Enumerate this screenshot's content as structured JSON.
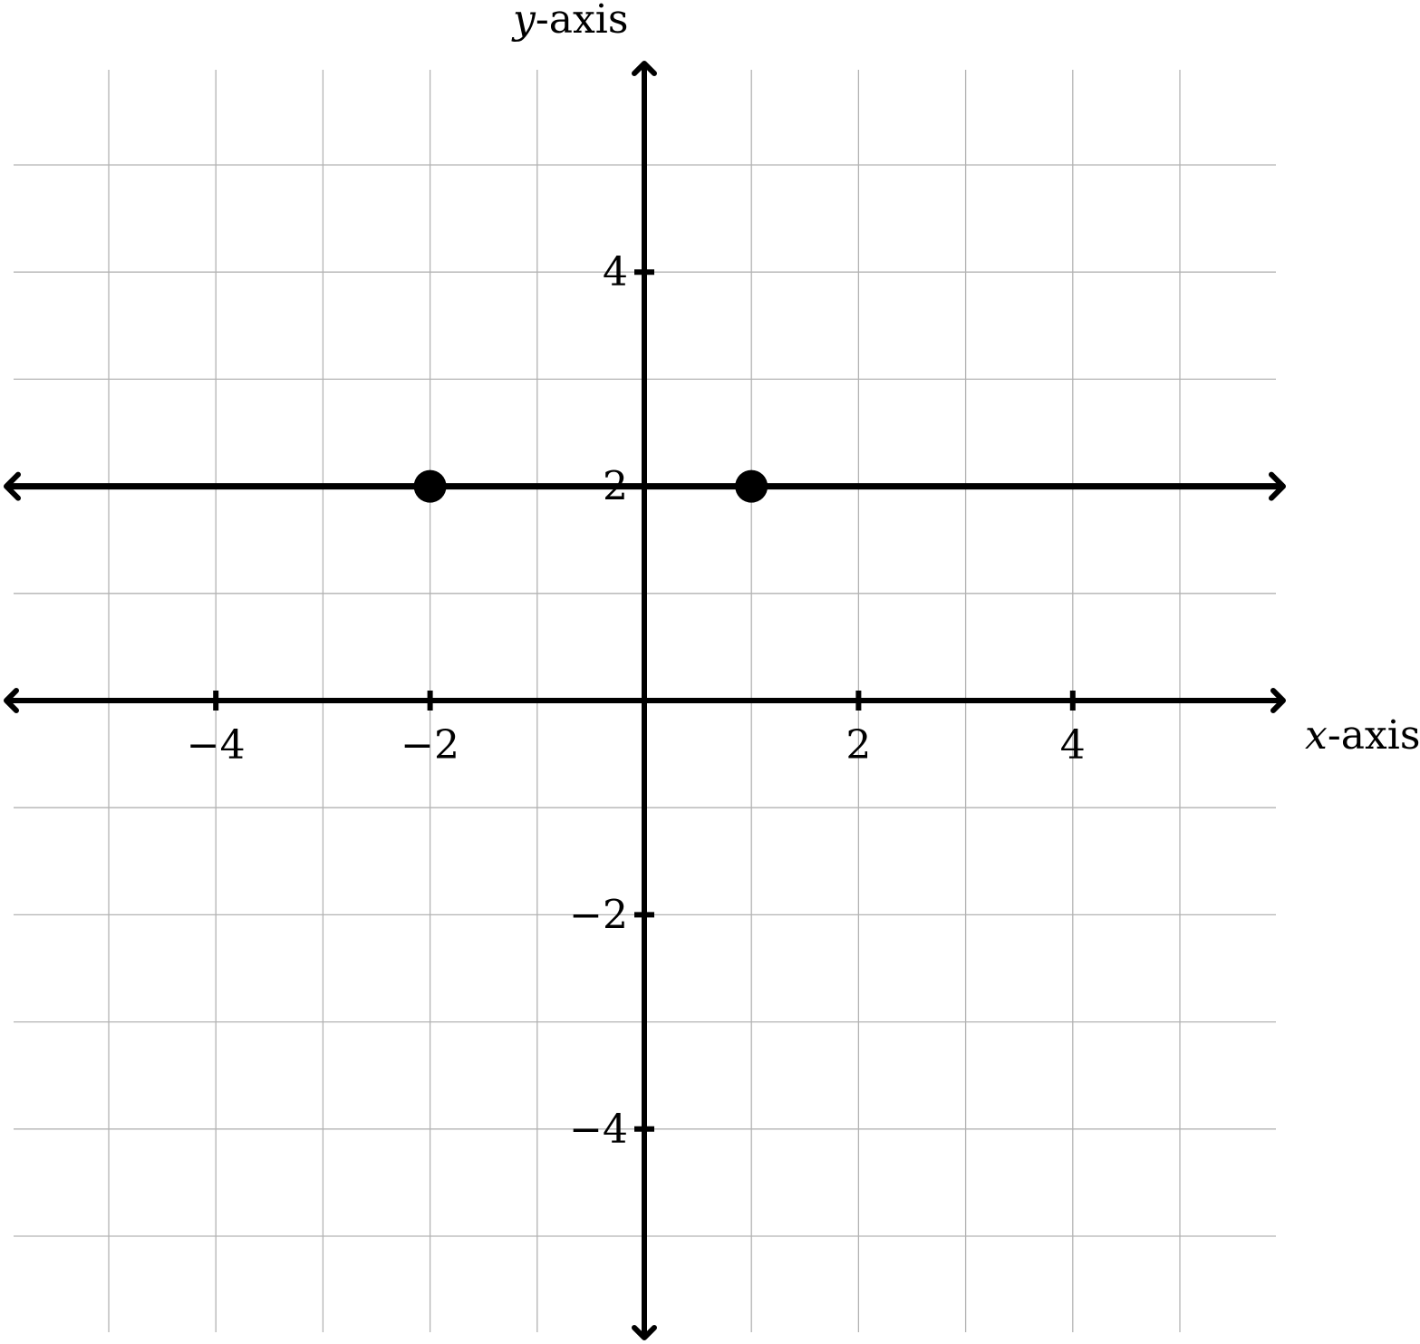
{
  "chart_data": {
    "type": "line",
    "xlabel": {
      "var": "x",
      "suffix": "-axis"
    },
    "ylabel": {
      "var": "y",
      "suffix": "-axis"
    },
    "xlim": [
      -6,
      6
    ],
    "ylim": [
      -6,
      6
    ],
    "grid": true,
    "x_ticks": [
      -4,
      -2,
      2,
      4
    ],
    "y_ticks": [
      -4,
      -2,
      2,
      4
    ],
    "x_tick_labels": [
      "−4",
      "−2",
      "2",
      "4"
    ],
    "y_tick_labels": [
      "−4",
      "−2",
      "2",
      "4"
    ],
    "series": [
      {
        "kind": "line",
        "slope": 0,
        "intercept": 2,
        "arrows_both_ends": true,
        "color": "#000000"
      }
    ],
    "points": [
      {
        "x": -2,
        "y": 2
      },
      {
        "x": 1,
        "y": 2
      }
    ]
  }
}
